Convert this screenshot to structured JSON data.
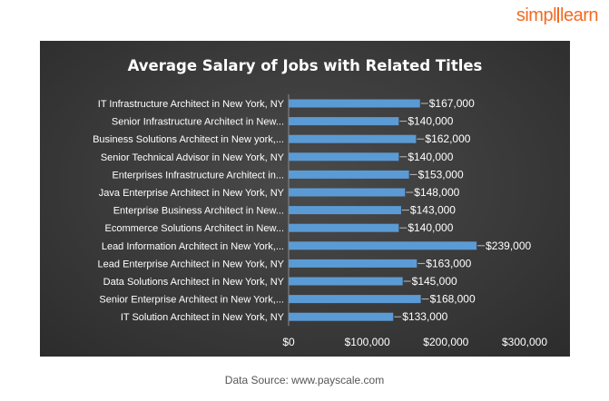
{
  "brand": {
    "part1": "simpl",
    "part2": "learn",
    "color": "#f26b21"
  },
  "source_note": "Data Source: www.payscale.com",
  "colors": {
    "bar": "#5b9bd5",
    "text": "#ffffff",
    "background": "#3a3a3a"
  },
  "chart_data": {
    "type": "bar",
    "orientation": "horizontal",
    "title": "Average Salary of Jobs with Related Titles",
    "xlabel": "",
    "ylabel": "",
    "xlim": [
      0,
      300000
    ],
    "x_ticks": [
      "$0",
      "$100,000",
      "$200,000",
      "$300,000"
    ],
    "grid": false,
    "legend": "none",
    "categories": [
      "IT Infrastructure Architect in New York, NY",
      "Senior Infrastructure Architect in New...",
      "Business Solutions Architect in New york,...",
      "Senior Technical Advisor in New York, NY",
      "Enterprises Infrastructure Architect in...",
      "Java Enterprise Architect in New York, NY",
      "Enterprise Business Architect in New...",
      "Ecommerce Solutions Architect in New...",
      "Lead Information Architect in New York,...",
      "Lead Enterprise Architect in New York, NY",
      "Data Solutions Architect in New York, NY",
      "Senior Enterprise Architect in New York,...",
      "IT Solution Architect in New York, NY"
    ],
    "values": [
      167000,
      140000,
      162000,
      140000,
      153000,
      148000,
      143000,
      140000,
      239000,
      163000,
      145000,
      168000,
      133000
    ],
    "value_labels": [
      "$167,000",
      "$140,000",
      "$162,000",
      "$140,000",
      "$153,000",
      "$148,000",
      "$143,000",
      "$140,000",
      "$239,000",
      "$163,000",
      "$145,000",
      "$168,000",
      "$133,000"
    ]
  }
}
